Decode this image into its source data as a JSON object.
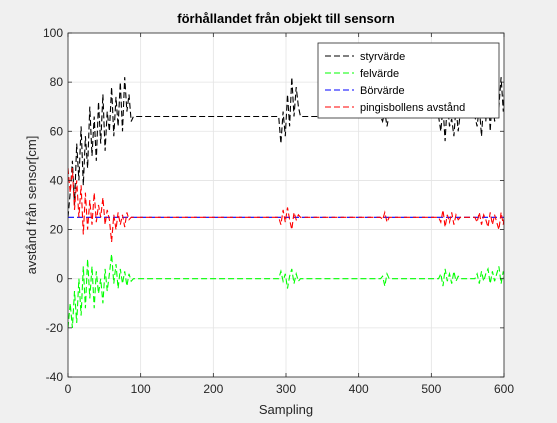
{
  "chart_data": {
    "type": "line",
    "title": "förhållandet från objekt till sensorn",
    "xlabel": "Sampling",
    "ylabel": "avstånd från sensor[cm]",
    "xlim": [
      0,
      600
    ],
    "ylim": [
      -40,
      100
    ],
    "xticks": [
      0,
      100,
      200,
      300,
      400,
      500,
      600
    ],
    "yticks": [
      -40,
      -20,
      0,
      20,
      40,
      60,
      80,
      100
    ],
    "xtick_labels": [
      "0",
      "100",
      "200",
      "300",
      "400",
      "500",
      "600"
    ],
    "ytick_labels": [
      "-40",
      "-20",
      "0",
      "20",
      "40",
      "60",
      "80",
      "100"
    ],
    "grid": true,
    "legend_position": "top-right",
    "legend": [
      "styrvärde",
      "felvärde",
      "Börvärde",
      "pingisbollens avstånd"
    ],
    "series": [
      {
        "name": "styrvärde",
        "color": "#000000",
        "style": "dashed",
        "x": [
          0,
          3,
          6,
          9,
          12,
          15,
          18,
          21,
          24,
          27,
          30,
          33,
          36,
          39,
          42,
          45,
          48,
          51,
          54,
          57,
          60,
          63,
          66,
          69,
          72,
          75,
          78,
          81,
          84,
          87,
          90,
          95,
          120,
          200,
          250,
          290,
          293,
          296,
          299,
          302,
          305,
          308,
          311,
          314,
          317,
          320,
          330,
          380,
          430,
          433,
          436,
          439,
          442,
          445,
          500,
          510,
          513,
          516,
          519,
          522,
          525,
          528,
          531,
          534,
          537,
          540,
          545,
          560,
          563,
          566,
          569,
          572,
          575,
          578,
          581,
          584,
          587,
          590,
          593,
          596,
          599,
          600
        ],
        "y": [
          25,
          35,
          48,
          30,
          55,
          40,
          62,
          38,
          58,
          45,
          70,
          50,
          66,
          48,
          72,
          55,
          75,
          52,
          68,
          60,
          78,
          58,
          74,
          62,
          80,
          60,
          82,
          68,
          75,
          64,
          66,
          66,
          66,
          66,
          66,
          66,
          55,
          68,
          58,
          75,
          62,
          82,
          66,
          78,
          70,
          66,
          66,
          66,
          66,
          64,
          68,
          62,
          67,
          66,
          66,
          66,
          60,
          70,
          56,
          72,
          62,
          65,
          58,
          70,
          60,
          68,
          66,
          66,
          62,
          70,
          58,
          72,
          64,
          80,
          60,
          76,
          64,
          68,
          70,
          82,
          68,
          75
        ]
      },
      {
        "name": "felvärde",
        "color": "#00ff00",
        "style": "dashed",
        "x": [
          0,
          3,
          6,
          9,
          12,
          15,
          18,
          21,
          24,
          27,
          30,
          33,
          36,
          39,
          42,
          45,
          48,
          51,
          54,
          57,
          60,
          63,
          66,
          69,
          72,
          75,
          78,
          81,
          84,
          87,
          90,
          95,
          150,
          250,
          290,
          293,
          296,
          299,
          302,
          305,
          308,
          311,
          314,
          317,
          320,
          380,
          430,
          433,
          436,
          439,
          442,
          500,
          510,
          513,
          516,
          519,
          522,
          525,
          528,
          531,
          534,
          537,
          540,
          560,
          563,
          566,
          569,
          572,
          575,
          578,
          581,
          584,
          587,
          590,
          593,
          596,
          599,
          600
        ],
        "y": [
          -20,
          -10,
          -20,
          -5,
          -18,
          0,
          -15,
          5,
          -12,
          8,
          -8,
          5,
          -12,
          3,
          -6,
          0,
          -10,
          4,
          -5,
          2,
          10,
          -2,
          6,
          -4,
          4,
          -2,
          3,
          -3,
          2,
          -1,
          0,
          0,
          0,
          0,
          0,
          3,
          -1,
          2,
          -4,
          1,
          4,
          -2,
          2,
          -1,
          0,
          0,
          0,
          1,
          -3,
          2,
          0,
          0,
          0,
          2,
          -3,
          4,
          -1,
          2,
          -2,
          3,
          -1,
          1,
          0,
          0,
          2,
          -2,
          3,
          -1,
          2,
          4,
          -2,
          3,
          -1,
          2,
          5,
          -2,
          3,
          0
        ]
      },
      {
        "name": "Börvärde",
        "color": "#0000ff",
        "style": "dashed",
        "x": [
          0,
          600
        ],
        "y": [
          25,
          25
        ]
      },
      {
        "name": "pingisbollens avstånd",
        "color": "#ff0000",
        "style": "dashed",
        "x": [
          0,
          3,
          6,
          9,
          12,
          15,
          18,
          21,
          24,
          27,
          30,
          33,
          36,
          39,
          42,
          45,
          48,
          51,
          54,
          57,
          60,
          63,
          66,
          69,
          72,
          75,
          78,
          81,
          84,
          87,
          90,
          95,
          150,
          250,
          290,
          293,
          296,
          299,
          302,
          305,
          308,
          311,
          314,
          317,
          320,
          380,
          430,
          433,
          436,
          439,
          442,
          500,
          510,
          513,
          516,
          519,
          522,
          525,
          528,
          531,
          534,
          537,
          540,
          560,
          563,
          566,
          569,
          572,
          575,
          578,
          581,
          584,
          587,
          590,
          593,
          596,
          599,
          600
        ],
        "y": [
          45,
          35,
          45,
          28,
          40,
          25,
          38,
          18,
          35,
          20,
          32,
          22,
          35,
          23,
          30,
          25,
          33,
          22,
          28,
          24,
          15,
          26,
          20,
          27,
          22,
          26,
          21,
          27,
          24,
          25,
          25,
          25,
          25,
          25,
          25,
          22,
          28,
          23,
          29,
          24,
          20,
          27,
          24,
          26,
          25,
          25,
          25,
          24,
          27,
          23,
          25,
          25,
          25,
          23,
          28,
          21,
          26,
          23,
          27,
          22,
          26,
          24,
          25,
          25,
          23,
          27,
          22,
          26,
          24,
          21,
          27,
          22,
          26,
          23,
          20,
          27,
          22,
          25
        ]
      }
    ]
  }
}
